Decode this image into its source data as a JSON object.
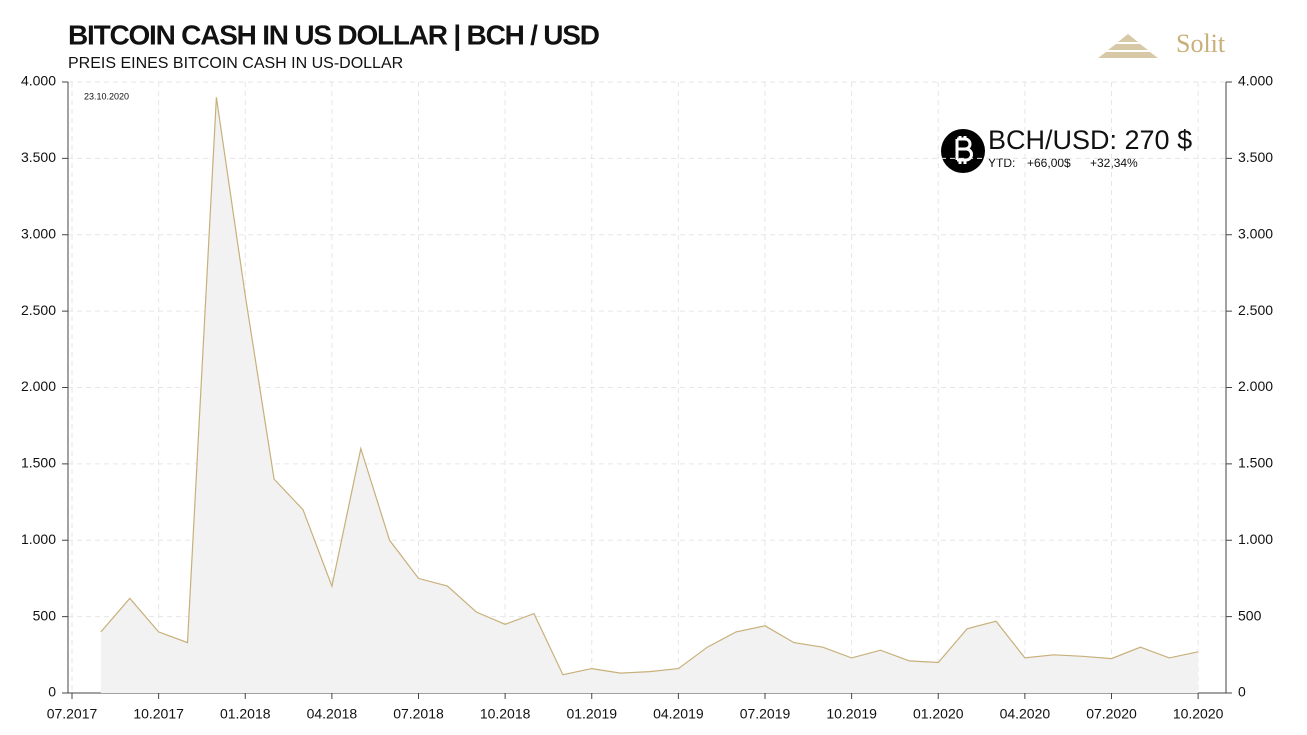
{
  "title": "BITCOIN CASH IN US DOLLAR | BCH / USD",
  "subtitle": "PREIS EINES  BITCOIN  CASH  IN  US-DOLLAR",
  "logo": "Solit",
  "date_stamp": "23.10.2020",
  "price_box": {
    "label": "BCH/USD: 270 $",
    "ytd_label": "YTD:",
    "ytd_abs": "+66,00$",
    "ytd_pct": "+32,34%"
  },
  "chart_data": {
    "type": "line",
    "x": [
      "2017-08",
      "2017-09",
      "2017-10",
      "2017-11",
      "2017-12",
      "2018-01",
      "2018-02",
      "2018-03",
      "2018-04",
      "2018-05",
      "2018-06",
      "2018-07",
      "2018-08",
      "2018-09",
      "2018-10",
      "2018-11",
      "2018-12",
      "2019-01",
      "2019-02",
      "2019-03",
      "2019-04",
      "2019-05",
      "2019-06",
      "2019-07",
      "2019-08",
      "2019-09",
      "2019-10",
      "2019-11",
      "2019-12",
      "2020-01",
      "2020-02",
      "2020-03",
      "2020-04",
      "2020-05",
      "2020-06",
      "2020-07",
      "2020-08",
      "2020-09",
      "2020-10"
    ],
    "series": [
      {
        "name": "BCH/USD",
        "color": "#c8b07a",
        "values": [
          400,
          620,
          400,
          330,
          3900,
          2600,
          1400,
          1200,
          700,
          1600,
          1000,
          750,
          700,
          530,
          450,
          520,
          120,
          160,
          130,
          140,
          160,
          300,
          400,
          440,
          330,
          300,
          230,
          280,
          210,
          200,
          420,
          470,
          230,
          250,
          240,
          225,
          300,
          230,
          270
        ]
      }
    ],
    "xlim": [
      "2017-07",
      "2020-11"
    ],
    "xticks": [
      {
        "value": "2017-07",
        "label": "07.2017"
      },
      {
        "value": "2017-10",
        "label": "10.2017"
      },
      {
        "value": "2018-01",
        "label": "01.2018"
      },
      {
        "value": "2018-04",
        "label": "04.2018"
      },
      {
        "value": "2018-07",
        "label": "07.2018"
      },
      {
        "value": "2018-10",
        "label": "10.2018"
      },
      {
        "value": "2019-01",
        "label": "01.2019"
      },
      {
        "value": "2019-04",
        "label": "04.2019"
      },
      {
        "value": "2019-07",
        "label": "07.2019"
      },
      {
        "value": "2019-10",
        "label": "10.2019"
      },
      {
        "value": "2020-01",
        "label": "01.2020"
      },
      {
        "value": "2020-04",
        "label": "04.2020"
      },
      {
        "value": "2020-07",
        "label": "07.2020"
      },
      {
        "value": "2020-10",
        "label": "10.2020"
      }
    ],
    "ylim": [
      0,
      4000
    ],
    "yticks": [
      0,
      500,
      {
        "value": 1000,
        "label": "1.000"
      },
      {
        "value": 1500,
        "label": "1.500"
      },
      {
        "value": 2000,
        "label": "2.000"
      },
      {
        "value": 2500,
        "label": "2.500"
      },
      {
        "value": 3000,
        "label": "3.000"
      },
      {
        "value": 3500,
        "label": "3.500"
      },
      {
        "value": 4000,
        "label": "4.000"
      }
    ],
    "grid": true,
    "area_fill": "#f2f2f2"
  }
}
